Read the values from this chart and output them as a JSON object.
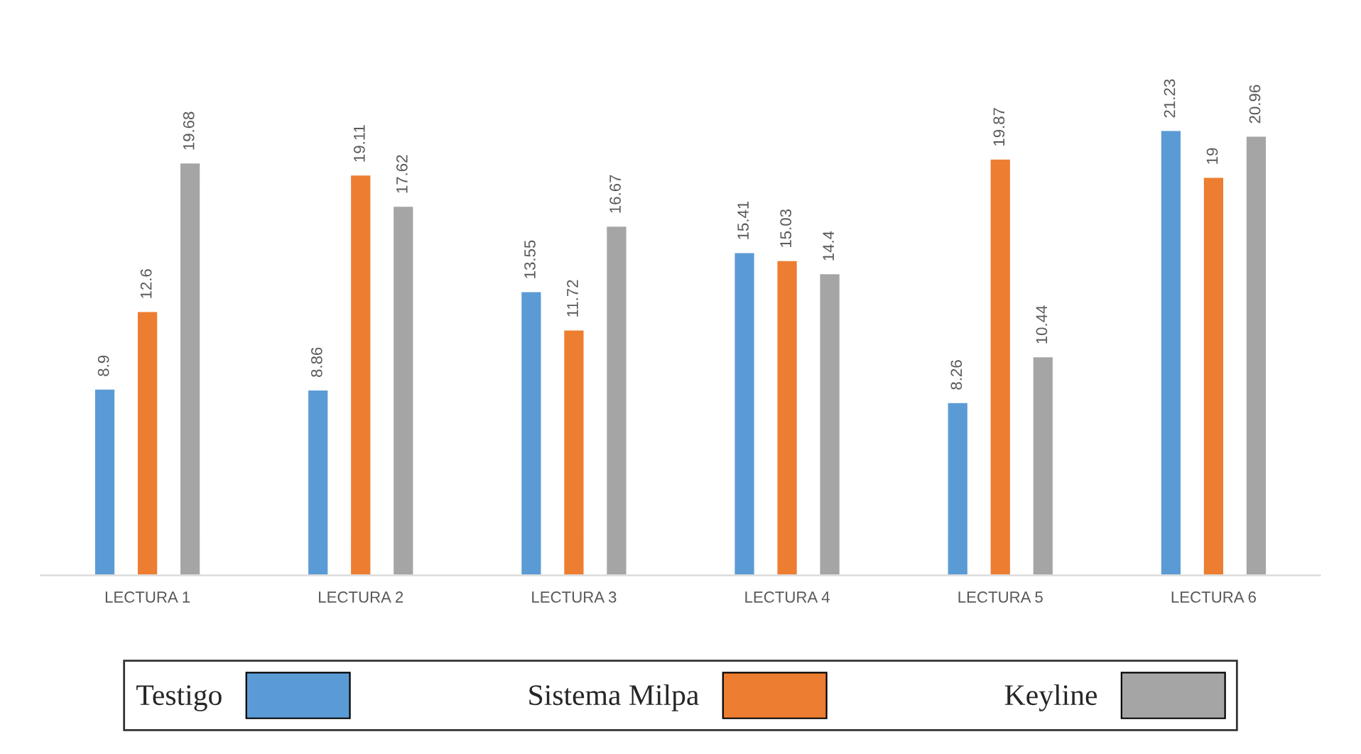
{
  "chart_data": {
    "type": "bar",
    "categories": [
      "LECTURA 1",
      "LECTURA 2",
      "LECTURA 3",
      "LECTURA 4",
      "LECTURA 5",
      "LECTURA 6"
    ],
    "series": [
      {
        "name": "Testigo",
        "color": "#5b9bd5",
        "values": [
          8.9,
          8.86,
          13.55,
          15.41,
          8.26,
          21.23
        ]
      },
      {
        "name": "Sistema Milpa",
        "color": "#ed7d31",
        "values": [
          12.6,
          19.11,
          11.72,
          15.03,
          19.87,
          19
        ]
      },
      {
        "name": "Keyline",
        "color": "#a5a5a5",
        "values": [
          19.68,
          17.62,
          16.67,
          14.4,
          10.44,
          20.96
        ]
      }
    ],
    "data_labels": true,
    "legend": "bottom",
    "tick_labels": "x"
  }
}
